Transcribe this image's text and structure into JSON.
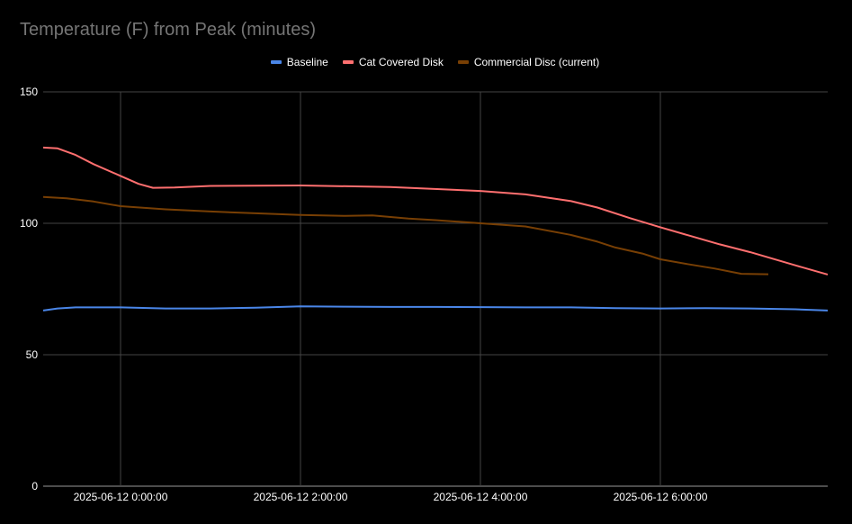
{
  "chart_data": {
    "type": "line",
    "title": "Temperature (F) from Peak (minutes)",
    "xlabel": "",
    "ylabel": "",
    "x_unit": "hours since 2025-06-12 0:00:00",
    "xlim": [
      -0.86,
      7.86
    ],
    "ylim": [
      0,
      150
    ],
    "yticks": [
      0,
      50,
      100,
      150
    ],
    "xticks": [
      {
        "value": 0,
        "label": "2025-06-12 0:00:00"
      },
      {
        "value": 2,
        "label": "2025-06-12 2:00:00"
      },
      {
        "value": 4,
        "label": "2025-06-12 4:00:00"
      },
      {
        "value": 6,
        "label": "2025-06-12 6:00:00"
      }
    ],
    "grid": true,
    "legend_position": "top",
    "series": [
      {
        "name": "Baseline",
        "color": "#4a86e8",
        "x": [
          -0.86,
          -0.7,
          -0.5,
          0,
          0.5,
          1,
          1.5,
          2,
          2.5,
          3,
          3.5,
          4,
          4.5,
          5,
          5.5,
          6,
          6.5,
          7,
          7.5,
          7.86
        ],
        "y": [
          66.8,
          67.6,
          68,
          68,
          67.6,
          67.6,
          67.9,
          68.4,
          68.3,
          68.2,
          68.2,
          68.1,
          68,
          68,
          67.7,
          67.6,
          67.7,
          67.6,
          67.3,
          66.8
        ]
      },
      {
        "name": "Cat Covered Disk",
        "color": "#ff6f6f",
        "x": [
          -0.86,
          -0.7,
          -0.5,
          -0.3,
          0,
          0.2,
          0.36,
          0.6,
          1,
          2,
          3,
          4,
          4.5,
          5,
          5.3,
          5.66,
          6,
          6.3,
          6.66,
          7,
          7.5,
          7.86
        ],
        "y": [
          128.8,
          128.5,
          126,
          122.5,
          118,
          115,
          113.5,
          113.6,
          114.2,
          114.4,
          113.8,
          112.3,
          111,
          108.5,
          106,
          102,
          98.5,
          95.5,
          92,
          89,
          84,
          80.5
        ]
      },
      {
        "name": "Commercial Disc (current)",
        "color": "#783f04",
        "x": [
          -0.86,
          -0.6,
          -0.3,
          0,
          0.5,
          1,
          1.5,
          2,
          2.5,
          2.8,
          3.2,
          3.5,
          4,
          4.5,
          5,
          5.3,
          5.5,
          5.8,
          6,
          6.3,
          6.6,
          6.9,
          7.2
        ],
        "y": [
          110,
          109.5,
          108.3,
          106.5,
          105.3,
          104.5,
          103.8,
          103.2,
          102.8,
          103,
          101.8,
          101.2,
          100,
          98.8,
          95.6,
          93,
          90.8,
          88.5,
          86.3,
          84.5,
          82.8,
          80.8,
          80.6
        ]
      }
    ]
  }
}
